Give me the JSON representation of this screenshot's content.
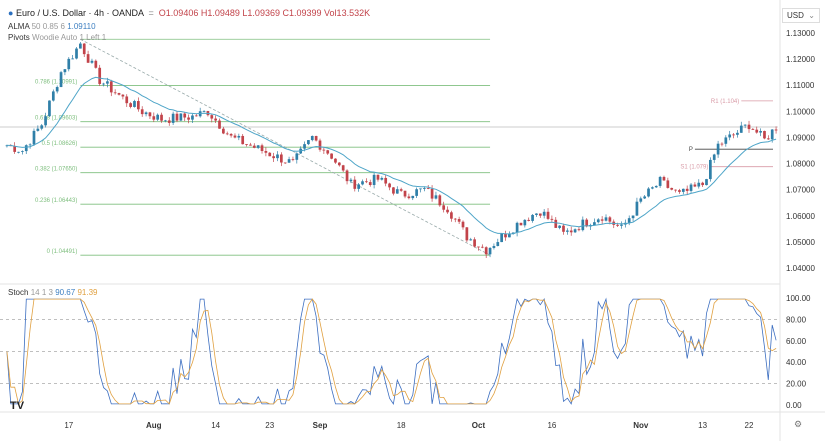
{
  "header": {
    "title": "Euro / U.S. Dollar · 4h · OANDA",
    "o": "O1.09406",
    "h": "H1.09489",
    "l": "L1.09369",
    "c": "C1.09399",
    "vol": "Vol13.532K",
    "alma_label": "ALMA",
    "alma_params": "50 0.85 6",
    "alma_value": "1.09110",
    "pivots_label": "Pivots",
    "pivots_params": "Woodie Auto 1 Left 1"
  },
  "currency": "USD",
  "colors": {
    "up": "#2f7fa8",
    "down": "#c2434a",
    "alma": "#4ea5c8",
    "fib": "#7fbf7f",
    "pivot": "#d89aa6",
    "k": "#3d6fc1",
    "d": "#e0a040"
  },
  "chart_data": {
    "type": "candlestick",
    "bars": 200,
    "ylim": [
      1.036,
      1.133
    ],
    "yticks": [
      "1.13000",
      "1.12000",
      "1.11000",
      "1.10000",
      "1.09000",
      "1.08000",
      "1.07000",
      "1.06000",
      "1.05000",
      "1.04000"
    ],
    "xticks": [
      {
        "label": "17",
        "bar": 16
      },
      {
        "label": "Aug",
        "bar": 38
      },
      {
        "label": "14",
        "bar": 54
      },
      {
        "label": "23",
        "bar": 68
      },
      {
        "label": "Sep",
        "bar": 81
      },
      {
        "label": "18",
        "bar": 102
      },
      {
        "label": "Oct",
        "bar": 122
      },
      {
        "label": "16",
        "bar": 141
      },
      {
        "label": "Nov",
        "bar": 164
      },
      {
        "label": "13",
        "bar": 180
      },
      {
        "label": "22",
        "bar": 192
      }
    ],
    "price_keypoints": [
      [
        0,
        1.087
      ],
      [
        4,
        1.085
      ],
      [
        9,
        1.095
      ],
      [
        14,
        1.115
      ],
      [
        19,
        1.126
      ],
      [
        24,
        1.112
      ],
      [
        30,
        1.105
      ],
      [
        35,
        1.1
      ],
      [
        40,
        1.097
      ],
      [
        48,
        1.098
      ],
      [
        52,
        1.1
      ],
      [
        58,
        1.09
      ],
      [
        66,
        1.085
      ],
      [
        74,
        1.08
      ],
      [
        79,
        1.09
      ],
      [
        84,
        1.083
      ],
      [
        89,
        1.072
      ],
      [
        96,
        1.074
      ],
      [
        102,
        1.068
      ],
      [
        108,
        1.07
      ],
      [
        114,
        1.063
      ],
      [
        119,
        1.052
      ],
      [
        124,
        1.047
      ],
      [
        128,
        1.052
      ],
      [
        133,
        1.058
      ],
      [
        138,
        1.062
      ],
      [
        144,
        1.053
      ],
      [
        149,
        1.057
      ],
      [
        154,
        1.06
      ],
      [
        159,
        1.055
      ],
      [
        164,
        1.066
      ],
      [
        169,
        1.073
      ],
      [
        174,
        1.068
      ],
      [
        180,
        1.072
      ],
      [
        184,
        1.087
      ],
      [
        189,
        1.092
      ],
      [
        192,
        1.095
      ],
      [
        196,
        1.089
      ],
      [
        199,
        1.094
      ]
    ],
    "current_price": 1.094,
    "fib": {
      "from_bar": 19,
      "to_bar": 125,
      "levels": [
        {
          "label": "",
          "price": 1.1276
        },
        {
          "label": "0.786 (1.10991)",
          "price": 1.10991
        },
        {
          "label": "0.618 (1.09603)",
          "price": 1.09603
        },
        {
          "label": "0.5 (1.08626)",
          "price": 1.08626
        },
        {
          "label": "0.382 (1.07650)",
          "price": 1.0765
        },
        {
          "label": "0.236 (1.06443)",
          "price": 1.06443
        },
        {
          "label": "0 (1.04491)",
          "price": 1.04491
        }
      ]
    },
    "pivots": [
      {
        "label": "R1 (1.104)",
        "price": 1.104,
        "from_bar": 190
      },
      {
        "label": "P",
        "price": 1.0855,
        "from_bar": 178
      },
      {
        "label": "S1 (1.079)",
        "price": 1.0788,
        "from_bar": 182
      }
    ],
    "stoch": {
      "label": "Stoch",
      "params": "14 1 3",
      "k": "90.67",
      "d": "91.39",
      "yticks": [
        "100.00",
        "80.00",
        "60.00",
        "40.00",
        "20.00",
        "0.00"
      ],
      "bands": [
        80,
        50,
        20
      ]
    }
  }
}
